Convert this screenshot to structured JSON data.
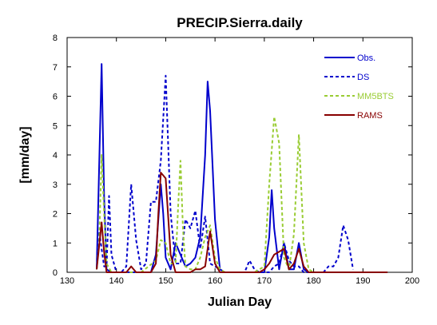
{
  "chart_data": {
    "type": "line",
    "title": "PRECIP.Sierra.daily",
    "xlabel": "Julian Day",
    "ylabel": "[mm/day]",
    "xlim": [
      130,
      200
    ],
    "ylim": [
      0,
      8
    ],
    "x_ticks": [
      130,
      140,
      150,
      160,
      170,
      180,
      190,
      200
    ],
    "y_ticks": [
      0,
      1,
      2,
      3,
      4,
      5,
      6,
      7,
      8
    ],
    "grid": false,
    "legend_position": "top-right",
    "series": [
      {
        "name": "Obs.",
        "color": "#0000cc",
        "style": "solid",
        "x": [
          136,
          136.5,
          137,
          137.5,
          138,
          139,
          140,
          141,
          142,
          143,
          144,
          145,
          146,
          147,
          148,
          149,
          149.5,
          150,
          151,
          152,
          153,
          154,
          155,
          156,
          157,
          158,
          158.5,
          159,
          160,
          161,
          162,
          163,
          164,
          165,
          166,
          167,
          168,
          169,
          170,
          171,
          171.5,
          172,
          173,
          174,
          175,
          176,
          177,
          178,
          179,
          180,
          185,
          195
        ],
        "y": [
          0.1,
          3.6,
          7.1,
          2.6,
          0.1,
          0,
          0,
          0,
          0,
          0,
          0,
          0,
          0,
          0,
          0.6,
          3.0,
          2.0,
          0.5,
          0.1,
          1.0,
          0.6,
          0.2,
          0.3,
          0.5,
          1.2,
          4.0,
          6.5,
          5.5,
          1.8,
          0.1,
          0,
          0,
          0,
          0,
          0,
          0,
          0,
          0,
          0,
          1.2,
          2.8,
          1.5,
          0.1,
          1.0,
          0.1,
          0.1,
          1.0,
          0.1,
          0,
          0,
          0,
          0
        ]
      },
      {
        "name": "DS",
        "color": "#0000cc",
        "style": "dashed",
        "x": [
          136,
          136.5,
          137,
          137.5,
          138,
          138.5,
          139,
          140,
          141,
          142,
          143,
          144,
          145,
          146,
          147,
          148,
          149,
          150,
          151,
          152,
          153,
          154,
          155,
          156,
          157,
          158,
          159,
          160,
          161,
          162,
          163,
          164,
          165,
          166,
          167,
          168,
          169,
          170,
          171,
          172,
          173,
          174,
          175,
          176,
          177,
          178,
          179,
          180,
          181,
          182,
          183,
          184,
          185,
          186,
          187,
          188
        ],
        "y": [
          0.1,
          1.4,
          0.8,
          0.2,
          0.2,
          2.6,
          0.6,
          0,
          0,
          0.2,
          3.0,
          1.1,
          0.1,
          0.3,
          2.4,
          2.4,
          3.8,
          6.7,
          2.0,
          0.3,
          0.3,
          1.8,
          1.5,
          2.1,
          0.8,
          1.9,
          0.3,
          0.2,
          0.1,
          0,
          0,
          0,
          0,
          0,
          0.4,
          0.1,
          0,
          0,
          0,
          0.2,
          0.3,
          1.0,
          0.4,
          0.2,
          0.2,
          0,
          0,
          0,
          0,
          0,
          0.2,
          0.2,
          0.5,
          1.6,
          1.1,
          0.1
        ]
      },
      {
        "name": "MM5BTS",
        "color": "#99cc33",
        "style": "dashed",
        "x": [
          136,
          136.5,
          137,
          137.5,
          138,
          139,
          140,
          145,
          148,
          149,
          150,
          151,
          152,
          152.5,
          153,
          153.5,
          154,
          155,
          156,
          157,
          158,
          159,
          160,
          161,
          162,
          165,
          168,
          170,
          171,
          172,
          173,
          174,
          175,
          176,
          177,
          178,
          179,
          180,
          195
        ],
        "y": [
          0.1,
          1.0,
          4.0,
          2.0,
          0.3,
          0,
          0,
          0,
          0.4,
          1.1,
          1.0,
          0.3,
          0.3,
          2.2,
          3.8,
          1.5,
          0.2,
          0.1,
          0.1,
          0.5,
          1.2,
          1.6,
          0.5,
          0.1,
          0,
          0,
          0,
          0.2,
          3.0,
          5.3,
          4.4,
          0.5,
          0.1,
          1.3,
          4.7,
          1.0,
          0.1,
          0,
          0
        ]
      },
      {
        "name": "RAMS",
        "color": "#880000",
        "style": "solid",
        "x": [
          136,
          136.5,
          137,
          137.5,
          138,
          139,
          140,
          141,
          142,
          143,
          144,
          145,
          146,
          147,
          148,
          148.5,
          149,
          150,
          151,
          152,
          153,
          154,
          155,
          156,
          157,
          158,
          159,
          160,
          161,
          162,
          163,
          164,
          165,
          166,
          167,
          168,
          169,
          170,
          171,
          172,
          173,
          174,
          175,
          176,
          177,
          178,
          179,
          180,
          185,
          190,
          195
        ],
        "y": [
          0.1,
          0.9,
          1.7,
          0.7,
          0,
          0,
          0,
          0,
          0,
          0.2,
          0,
          0,
          0,
          0,
          0.3,
          2.0,
          3.4,
          3.2,
          0.6,
          0,
          0,
          0,
          0,
          0.1,
          0.1,
          0.2,
          1.4,
          0.3,
          0,
          0,
          0,
          0,
          0,
          0,
          0,
          0,
          0,
          0.1,
          0.3,
          0.6,
          0.7,
          0.8,
          0.1,
          0.3,
          0.8,
          0.2,
          0,
          0,
          0,
          0,
          0
        ]
      }
    ]
  }
}
